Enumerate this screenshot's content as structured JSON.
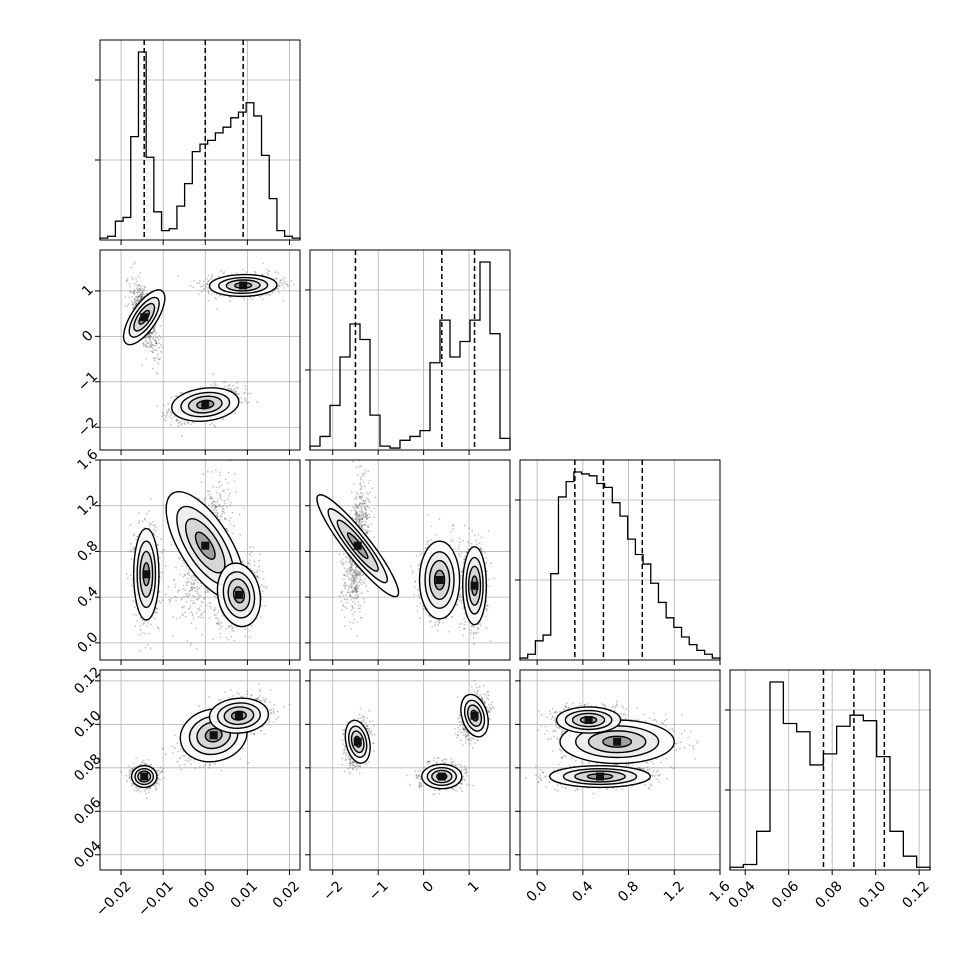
{
  "chart_data": {
    "type": "corner",
    "title": "",
    "grid": true,
    "parameters": [
      {
        "range": [
          -0.025,
          0.0225
        ],
        "ticks": [
          -0.02,
          -0.01,
          0.0,
          0.01,
          0.02
        ],
        "tick_labels": [
          "−0.02",
          "−0.01",
          "0.00",
          "0.01",
          "0.02"
        ]
      },
      {
        "range": [
          -2.5,
          1.9
        ],
        "ticks": [
          -2,
          -1,
          0,
          1
        ],
        "tick_labels": [
          "−2",
          "−1",
          "0",
          "1"
        ]
      },
      {
        "range": [
          -0.15,
          1.6
        ],
        "ticks": [
          0.0,
          0.4,
          0.8,
          1.2,
          1.6
        ],
        "tick_labels": [
          "0.0",
          "0.4",
          "0.8",
          "1.2",
          "1.6"
        ]
      },
      {
        "range": [
          0.033,
          0.125
        ],
        "ticks": [
          0.04,
          0.06,
          0.08,
          0.1,
          0.12
        ],
        "tick_labels": [
          "0.04",
          "0.06",
          "0.08",
          "0.10",
          "0.12"
        ]
      }
    ],
    "histograms": [
      {
        "quantiles": [
          -0.0145,
          0.0,
          0.009
        ],
        "bin_edges": [
          -0.025,
          0.0225
        ],
        "counts": [
          0.01,
          0.02,
          0.1,
          0.12,
          0.55,
          1.0,
          0.44,
          0.15,
          0.05,
          0.06,
          0.18,
          0.3,
          0.47,
          0.51,
          0.53,
          0.57,
          0.6,
          0.65,
          0.68,
          0.73,
          0.66,
          0.45,
          0.22,
          0.05,
          0.02,
          0.01
        ]
      },
      {
        "quantiles": [
          -1.5,
          0.4,
          1.12
        ],
        "bin_edges": [
          -2.5,
          1.9
        ],
        "counts": [
          0.02,
          0.07,
          0.23,
          0.48,
          0.65,
          0.57,
          0.18,
          0.02,
          0.01,
          0.05,
          0.07,
          0.1,
          0.45,
          0.67,
          0.48,
          0.56,
          0.67,
          0.97,
          0.6,
          0.06
        ]
      },
      {
        "quantiles": [
          0.33,
          0.58,
          0.92
        ],
        "bin_edges": [
          -0.15,
          1.6
        ],
        "counts": [
          0.01,
          0.03,
          0.1,
          0.13,
          0.45,
          0.85,
          0.93,
          0.98,
          0.97,
          0.96,
          0.92,
          0.9,
          0.82,
          0.75,
          0.63,
          0.55,
          0.5,
          0.4,
          0.3,
          0.22,
          0.17,
          0.12,
          0.08,
          0.05,
          0.03,
          0.01
        ]
      },
      {
        "quantiles": [
          0.076,
          0.09,
          0.104
        ],
        "bin_edges": [
          0.033,
          0.125
        ],
        "counts": [
          0.01,
          0.02,
          0.14,
          0.68,
          0.53,
          0.5,
          0.38,
          0.42,
          0.52,
          0.56,
          0.54,
          0.41,
          0.14,
          0.05,
          0.01
        ]
      }
    ],
    "panels_2d": [
      {
        "x": 0,
        "y": 1,
        "clusters": [
          {
            "mean": [
              -0.0145,
              0.42
            ],
            "sd": [
              0.0015,
              0.35
            ],
            "corr": -0.6,
            "weight": 0.33
          },
          {
            "mean": [
              0.009,
              1.12
            ],
            "sd": [
              0.004,
              0.12
            ],
            "corr": 0.1,
            "weight": 0.33
          },
          {
            "mean": [
              0.0,
              -1.5
            ],
            "sd": [
              0.004,
              0.18
            ],
            "corr": 0.4,
            "weight": 0.34
          }
        ]
      },
      {
        "x": 0,
        "y": 2,
        "clusters": [
          {
            "mean": [
              -0.014,
              0.6
            ],
            "sd": [
              0.0015,
              0.2
            ],
            "corr": 0.0,
            "weight": 0.33
          },
          {
            "mean": [
              0.0,
              0.85
            ],
            "sd": [
              0.003,
              0.27
            ],
            "corr": 0.55,
            "weight": 0.34
          },
          {
            "mean": [
              0.008,
              0.42
            ],
            "sd": [
              0.0025,
              0.14
            ],
            "corr": 0.2,
            "weight": 0.33
          }
        ]
      },
      {
        "x": 1,
        "y": 2,
        "clusters": [
          {
            "mean": [
              -1.45,
              0.85
            ],
            "sd": [
              0.14,
              0.28
            ],
            "corr": 0.4,
            "weight": 0.33
          },
          {
            "mean": [
              0.35,
              0.55
            ],
            "sd": [
              0.22,
              0.17
            ],
            "corr": 0.0,
            "weight": 0.33
          },
          {
            "mean": [
              1.12,
              0.5
            ],
            "sd": [
              0.13,
              0.17
            ],
            "corr": 0.0,
            "weight": 0.34
          }
        ]
      },
      {
        "x": 0,
        "y": 3,
        "clusters": [
          {
            "mean": [
              -0.0145,
              0.076
            ],
            "sd": [
              0.0015,
              0.0025
            ],
            "corr": 0.0,
            "weight": 0.33
          },
          {
            "mean": [
              0.002,
              0.095
            ],
            "sd": [
              0.004,
              0.006
            ],
            "corr": 0.5,
            "weight": 0.33
          },
          {
            "mean": [
              0.008,
              0.104
            ],
            "sd": [
              0.0035,
              0.004
            ],
            "corr": 0.2,
            "weight": 0.34
          }
        ]
      },
      {
        "x": 1,
        "y": 3,
        "clusters": [
          {
            "mean": [
              -1.45,
              0.092
            ],
            "sd": [
              0.13,
              0.005
            ],
            "corr": 0.2,
            "weight": 0.33
          },
          {
            "mean": [
              0.4,
              0.076
            ],
            "sd": [
              0.22,
              0.0028
            ],
            "corr": 0.0,
            "weight": 0.33
          },
          {
            "mean": [
              1.12,
              0.104
            ],
            "sd": [
              0.14,
              0.005
            ],
            "corr": 0.3,
            "weight": 0.34
          }
        ]
      },
      {
        "x": 2,
        "y": 3,
        "clusters": [
          {
            "mean": [
              0.55,
              0.076
            ],
            "sd": [
              0.22,
              0.0025
            ],
            "corr": 0.0,
            "weight": 0.35
          },
          {
            "mean": [
              0.7,
              0.092
            ],
            "sd": [
              0.25,
              0.005
            ],
            "corr": 0.0,
            "weight": 0.3
          },
          {
            "mean": [
              0.45,
              0.102
            ],
            "sd": [
              0.14,
              0.003
            ],
            "corr": 0.0,
            "weight": 0.35
          }
        ]
      }
    ]
  }
}
